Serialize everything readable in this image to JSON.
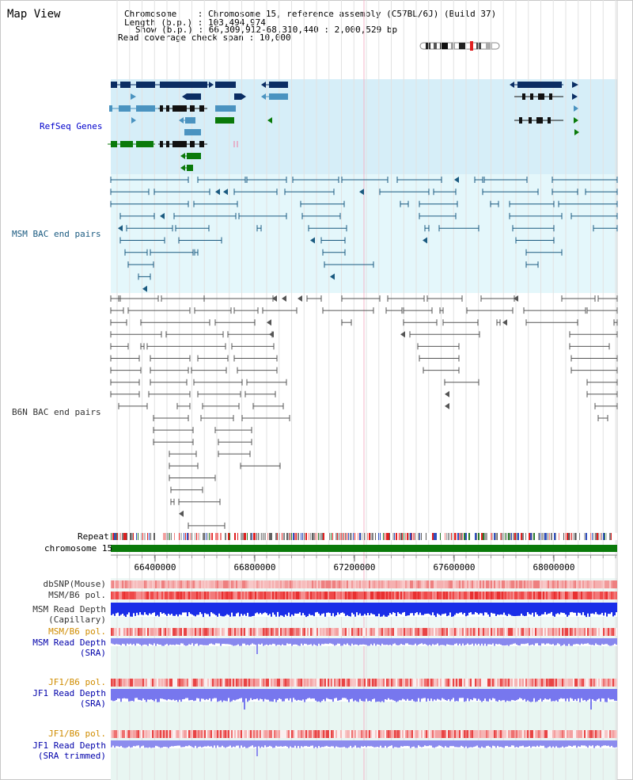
{
  "title": "Map View",
  "header": {
    "chromosome_label": "Chromosome    ",
    "chromosome_value": "Chromosome 15, reference assembly (C57BL/6J) (Build 37)",
    "length_label": "Length (b.p.)",
    "length_value": "103,494,974",
    "show_label": "Show (b.p.)",
    "show_value": "66,309,912-68,310,440 : 2,000,529 bp",
    "coverage_label": "Read coverage check span",
    "coverage_value": "10,000"
  },
  "tracks": {
    "refseq": {
      "label": "RefSeq Genes",
      "color": "#0000cc"
    },
    "msm_bac": {
      "label": "MSM BAC end pairs",
      "color": "#1a5a80"
    },
    "b6n_bac": {
      "label": "B6N BAC end pairs",
      "color": "#333333"
    },
    "repeat": {
      "label": "Repeat"
    },
    "chromosome": {
      "label": "chromosome 15",
      "color": "#0a7a0a"
    }
  },
  "axis": {
    "ticks": [
      "66400000",
      "66800000",
      "67200000",
      "67600000",
      "68000000"
    ]
  },
  "lower_tracks": [
    {
      "label": "dbSNP(Mouse)",
      "color": "#333333",
      "lines": [
        "dbSNP(Mouse)"
      ]
    },
    {
      "label": "MSM/B6 pol.",
      "color": "#333333",
      "lines": [
        "MSM/B6 pol."
      ]
    },
    {
      "label": "MSM Read Depth (Capillary)",
      "color": "#333333",
      "lines": [
        "MSM Read Depth",
        "(Capillary)"
      ]
    },
    {
      "label": "MSM/B6 pol.",
      "color": "#d08c00",
      "lines": [
        "MSM/B6 pol."
      ]
    },
    {
      "label": "MSM Read Depth (SRA)",
      "color": "#0000aa",
      "lines": [
        "MSM Read Depth",
        "(SRA)"
      ]
    },
    {
      "label": "JF1/B6 pol.",
      "color": "#d08c00",
      "lines": [
        "JF1/B6 pol."
      ]
    },
    {
      "label": "JF1 Read Depth (SRA)",
      "color": "#0000aa",
      "lines": [
        "JF1 Read Depth",
        "(SRA)"
      ]
    },
    {
      "label": "JF1/B6 pol.",
      "color": "#d08c00",
      "lines": [
        "JF1/B6 pol."
      ]
    },
    {
      "label": "JF1 Read Depth (SRA trimmed)",
      "color": "#0000aa",
      "lines": [
        "JF1 Read Depth",
        "(SRA trimmed)"
      ]
    }
  ]
}
